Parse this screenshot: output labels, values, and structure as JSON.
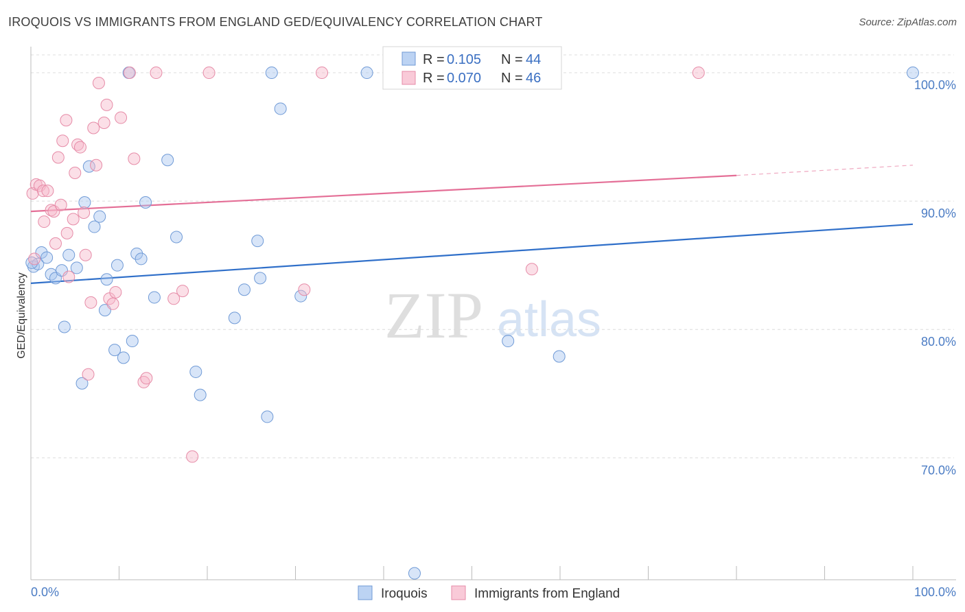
{
  "header": {
    "title": "IROQUOIS VS IMMIGRANTS FROM ENGLAND GED/EQUIVALENCY CORRELATION CHART",
    "source": "Source: ZipAtlas.com"
  },
  "watermark": {
    "zip": "ZIP",
    "atlas": "atlas"
  },
  "legend": {
    "r_label": "R =",
    "n_label": "N =",
    "rows": [
      {
        "r": "0.105",
        "n": "44"
      },
      {
        "r": "0.070",
        "n": "46"
      }
    ]
  },
  "chart_data": {
    "type": "scatter",
    "title": "IROQUOIS VS IMMIGRANTS FROM ENGLAND GED/EQUIVALENCY CORRELATION CHART",
    "ylabel": "GED/Equivalency",
    "xlabel": "",
    "xlim": [
      0,
      100
    ],
    "ylim": [
      60.5,
      101.5
    ],
    "x_ticks": [
      "0.0%",
      "100.0%"
    ],
    "y_ticks": [
      {
        "value": 70,
        "label": "70.0%"
      },
      {
        "value": 80,
        "label": "80.0%"
      },
      {
        "value": 90,
        "label": "90.0%"
      },
      {
        "value": 100,
        "label": "100.0%"
      }
    ],
    "grid": true,
    "legend_position": "top-center",
    "series": [
      {
        "name": "Iroquois",
        "color": "#a9c6ef",
        "stroke": "#6f9ad6",
        "trend_color": "#2f6fc9",
        "trend": {
          "x0": 0,
          "y0": 83.6,
          "x1": 100,
          "y1": 88.2
        },
        "points": [
          [
            0.3,
            84.9
          ],
          [
            0.8,
            85.1
          ],
          [
            1.2,
            86.0
          ],
          [
            1.8,
            85.6
          ],
          [
            2.3,
            84.3
          ],
          [
            2.8,
            84.0
          ],
          [
            3.5,
            84.6
          ],
          [
            4.3,
            85.8
          ],
          [
            5.2,
            84.8
          ],
          [
            3.8,
            80.2
          ],
          [
            5.8,
            75.8
          ],
          [
            6.1,
            89.9
          ],
          [
            6.6,
            92.7
          ],
          [
            7.2,
            88.0
          ],
          [
            7.8,
            88.8
          ],
          [
            8.4,
            81.5
          ],
          [
            8.6,
            83.9
          ],
          [
            9.5,
            78.4
          ],
          [
            9.8,
            85.0
          ],
          [
            10.5,
            77.8
          ],
          [
            11.1,
            100.0
          ],
          [
            11.5,
            79.1
          ],
          [
            12.0,
            85.9
          ],
          [
            12.5,
            85.5
          ],
          [
            13.0,
            89.9
          ],
          [
            14.0,
            82.5
          ],
          [
            15.5,
            93.2
          ],
          [
            16.5,
            87.2
          ],
          [
            18.7,
            76.7
          ],
          [
            19.2,
            74.9
          ],
          [
            23.1,
            80.9
          ],
          [
            24.2,
            83.1
          ],
          [
            25.7,
            86.9
          ],
          [
            26.0,
            84.0
          ],
          [
            26.8,
            73.2
          ],
          [
            27.3,
            100.0
          ],
          [
            28.3,
            97.2
          ],
          [
            30.6,
            82.6
          ],
          [
            38.1,
            100.0
          ],
          [
            43.5,
            61.0
          ],
          [
            54.1,
            79.1
          ],
          [
            59.9,
            77.9
          ],
          [
            100.0,
            100.0
          ],
          [
            0.1,
            85.2
          ]
        ]
      },
      {
        "name": "Immigrants from England",
        "color": "#f6b9ca",
        "stroke": "#e68ba7",
        "trend_color": "#e46e96",
        "trend": {
          "x0": 0,
          "y0": 89.2,
          "x1": 80,
          "y1": 92.0
        },
        "trend_dash": {
          "x0": 80,
          "y0": 92.0,
          "x1": 100,
          "y1": 92.8
        },
        "points": [
          [
            0.2,
            90.6
          ],
          [
            0.6,
            91.3
          ],
          [
            1.0,
            91.2
          ],
          [
            1.4,
            90.8
          ],
          [
            1.9,
            90.8
          ],
          [
            2.3,
            89.3
          ],
          [
            2.6,
            89.2
          ],
          [
            2.8,
            86.7
          ],
          [
            3.1,
            93.4
          ],
          [
            3.4,
            89.7
          ],
          [
            3.6,
            94.7
          ],
          [
            4.0,
            96.3
          ],
          [
            4.1,
            87.5
          ],
          [
            4.3,
            84.1
          ],
          [
            4.8,
            88.6
          ],
          [
            5.0,
            92.2
          ],
          [
            5.3,
            94.4
          ],
          [
            5.6,
            94.2
          ],
          [
            6.0,
            89.1
          ],
          [
            6.2,
            85.8
          ],
          [
            6.5,
            76.5
          ],
          [
            6.8,
            82.1
          ],
          [
            7.1,
            95.7
          ],
          [
            7.4,
            92.8
          ],
          [
            7.7,
            99.2
          ],
          [
            8.3,
            96.1
          ],
          [
            8.6,
            97.5
          ],
          [
            8.9,
            82.4
          ],
          [
            9.3,
            82.0
          ],
          [
            9.6,
            82.9
          ],
          [
            10.2,
            96.5
          ],
          [
            11.2,
            100.0
          ],
          [
            11.7,
            93.3
          ],
          [
            12.8,
            75.9
          ],
          [
            13.1,
            76.2
          ],
          [
            14.2,
            100.0
          ],
          [
            16.2,
            82.4
          ],
          [
            17.2,
            83.0
          ],
          [
            18.3,
            70.1
          ],
          [
            20.2,
            100.0
          ],
          [
            31.0,
            83.1
          ],
          [
            33.0,
            100.0
          ],
          [
            56.8,
            84.7
          ],
          [
            75.7,
            100.0
          ],
          [
            0.4,
            85.5
          ],
          [
            1.5,
            88.4
          ]
        ]
      }
    ]
  }
}
